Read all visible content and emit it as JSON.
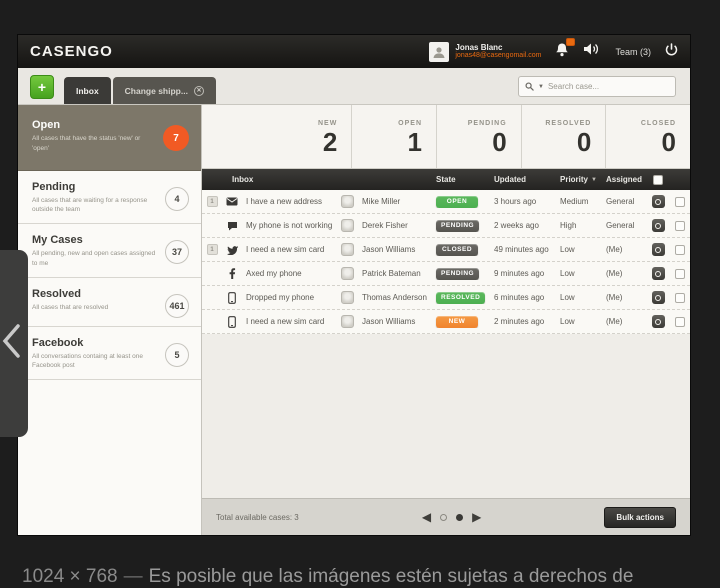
{
  "colors": {
    "accent_orange": "#f15a24",
    "badge_green": "#4caf50",
    "badge_dark": "#55544f",
    "badge_orange": "#f0832e",
    "email_orange": "#e96910"
  },
  "viewer": {
    "dimensions": "1024 × 768",
    "caption": "Es posible que las imágenes estén sujetas a derechos de"
  },
  "topbar": {
    "logo": "CASENGO",
    "user": {
      "name": "Jonas Blanc",
      "email": "jonas48@casengomail.com"
    },
    "team_label": "Team (3)"
  },
  "tabs": {
    "add_label": "+",
    "items": [
      {
        "label": "Inbox",
        "active": true,
        "closable": false
      },
      {
        "label": "Change shipp...",
        "active": false,
        "closable": true
      }
    ]
  },
  "search": {
    "placeholder": "Search case..."
  },
  "sidebar": {
    "items": [
      {
        "title": "Open",
        "description": "All cases that have the status 'new' or 'open'",
        "count": "7",
        "selected": true,
        "badge": "orange"
      },
      {
        "title": "Pending",
        "description": "All cases that are waiting for a response outside the team",
        "count": "4",
        "selected": false,
        "badge": "plain"
      },
      {
        "title": "My Cases",
        "description": "All pending, new and open cases assigned to me",
        "count": "37",
        "selected": false,
        "badge": "plain"
      },
      {
        "title": "Resolved",
        "description": "All cases that are resolved",
        "count": "461",
        "selected": false,
        "badge": "plain"
      },
      {
        "title": "Facebook",
        "description": "All conversations containg at least one Facebook post",
        "count": "5",
        "selected": false,
        "badge": "plain"
      }
    ]
  },
  "stats": [
    {
      "label": "NEW",
      "value": "2"
    },
    {
      "label": "OPEN",
      "value": "1"
    },
    {
      "label": "PENDING",
      "value": "0"
    },
    {
      "label": "RESOLVED",
      "value": "0"
    },
    {
      "label": "CLOSED",
      "value": "0"
    }
  ],
  "table": {
    "headers": {
      "inbox": "Inbox",
      "state": "State",
      "updated": "Updated",
      "priority": "Priority",
      "assigned": "Assigned"
    },
    "rows": [
      {
        "count": "1",
        "channel": "email",
        "subject": "I have a new address",
        "customer": "Mike Miller",
        "state": "OPEN",
        "state_color": "green",
        "updated": "3 hours ago",
        "priority": "Medium",
        "assigned": "General"
      },
      {
        "count": "",
        "channel": "chat",
        "subject": "My phone is not working",
        "customer": "Derek Fisher",
        "state": "PENDING",
        "state_color": "dark",
        "updated": "2 weeks ago",
        "priority": "High",
        "assigned": "General"
      },
      {
        "count": "1",
        "channel": "twitter",
        "subject": "I need a new sim card",
        "customer": "Jason Williams",
        "state": "CLOSED",
        "state_color": "dark",
        "updated": "49 minutes ago",
        "priority": "Low",
        "assigned": "(Me)"
      },
      {
        "count": "",
        "channel": "facebook",
        "subject": "Axed my phone",
        "customer": "Patrick Bateman",
        "state": "PENDING",
        "state_color": "dark",
        "updated": "9 minutes ago",
        "priority": "Low",
        "assigned": "(Me)"
      },
      {
        "count": "",
        "channel": "phone",
        "subject": "Dropped my phone",
        "customer": "Thomas Anderson",
        "state": "RESOLVED",
        "state_color": "green",
        "updated": "6 minutes ago",
        "priority": "Low",
        "assigned": "(Me)"
      },
      {
        "count": "",
        "channel": "phone",
        "subject": "I need a new sim card",
        "customer": "Jason Williams",
        "state": "NEW",
        "state_color": "orange",
        "updated": "2 minutes ago",
        "priority": "Low",
        "assigned": "(Me)"
      }
    ]
  },
  "footer": {
    "total_label": "Total available cases: 3",
    "bulk_label": "Bulk actions"
  },
  "icons": {
    "prev_page": "◀",
    "next_page": "▶"
  }
}
